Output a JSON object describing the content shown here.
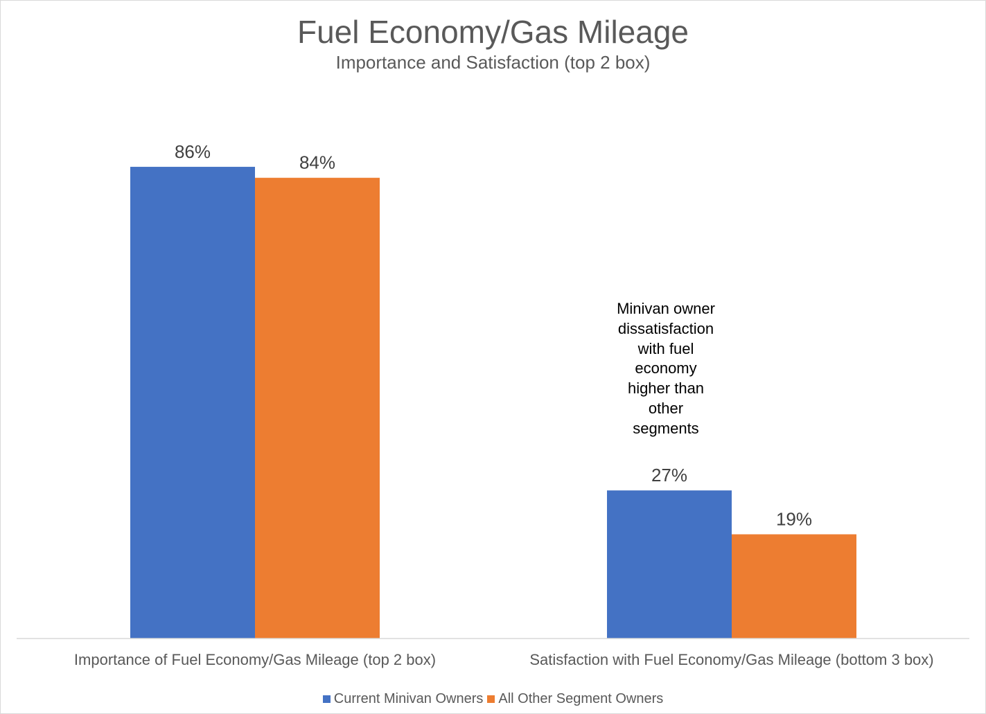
{
  "chart_data": {
    "type": "bar",
    "title": "Fuel Economy/Gas Mileage",
    "subtitle": "Importance and Satisfaction (top 2 box)",
    "categories": [
      "Importance of Fuel Economy/Gas Mileage (top 2 box)",
      "Satisfaction with Fuel Economy/Gas Mileage (bottom 3 box)"
    ],
    "series": [
      {
        "name": "Current Minivan Owners",
        "values": [
          86,
          27
        ],
        "labels": [
          "86%",
          "27%"
        ],
        "color": "#4472C4"
      },
      {
        "name": "All Other Segment Owners",
        "values": [
          84,
          19
        ],
        "labels": [
          "84%",
          "19%"
        ],
        "color": "#ED7D31"
      }
    ],
    "ylim": [
      0,
      100
    ],
    "grid": false,
    "legend_position": "bottom",
    "annotation": {
      "lines": [
        "Minivan owner",
        "dissatisfaction",
        "with fuel",
        "economy",
        "higher than",
        "other",
        "segments"
      ]
    }
  }
}
